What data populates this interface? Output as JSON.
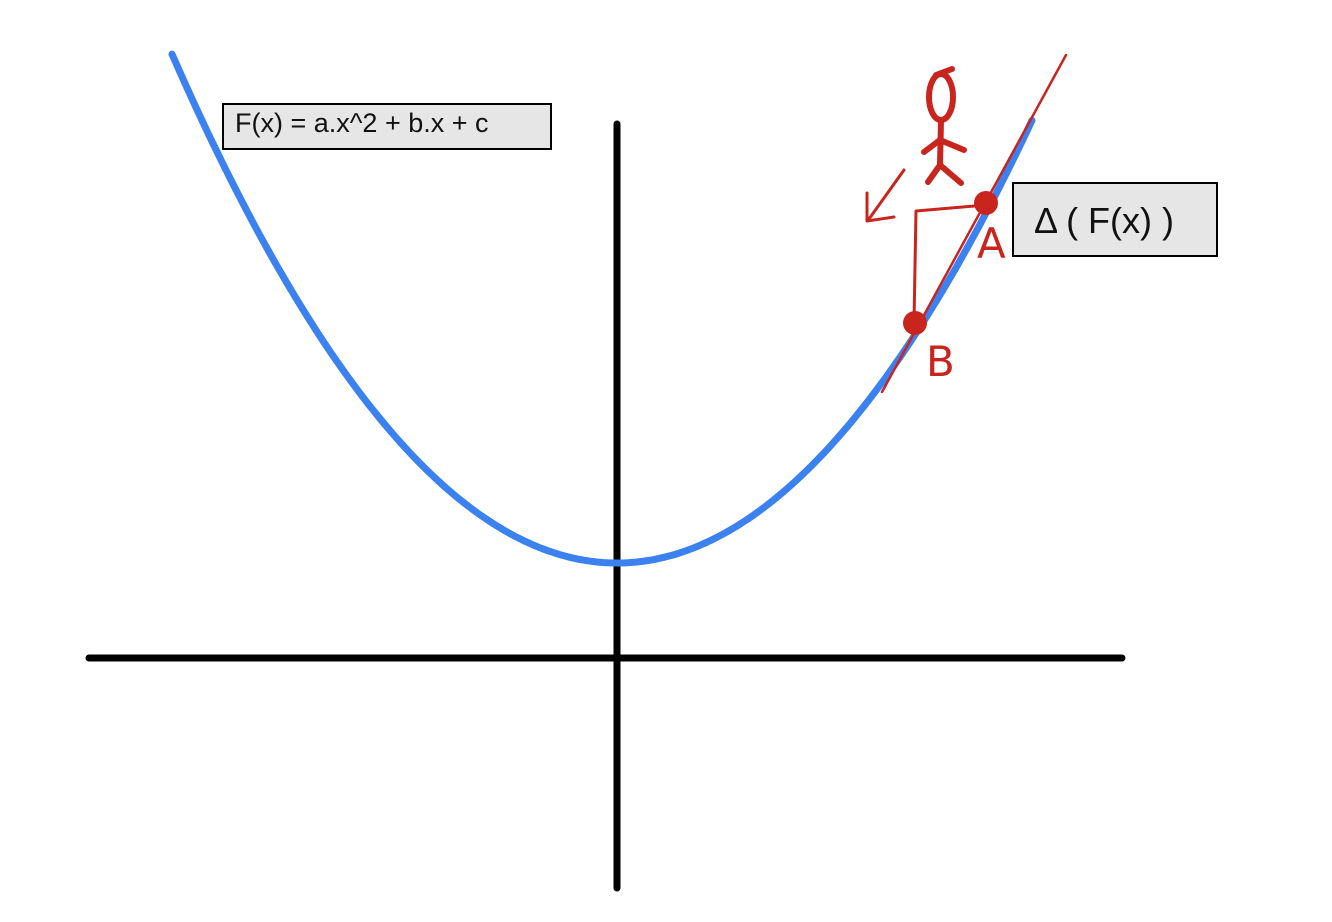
{
  "formula_label": "F(x) = a.x^2 + b.x + c",
  "delta_label": "Δ ( F(x) )",
  "points": [
    {
      "id": "A",
      "label": "A"
    },
    {
      "id": "B",
      "label": "B"
    }
  ],
  "colors": {
    "curve": "#3b82f0",
    "axes": "#000000",
    "annotation": "#c8251f",
    "label_bg": "#e6e6e6"
  },
  "icons": [
    "stick-figure-icon",
    "arrow-down-left-icon"
  ]
}
